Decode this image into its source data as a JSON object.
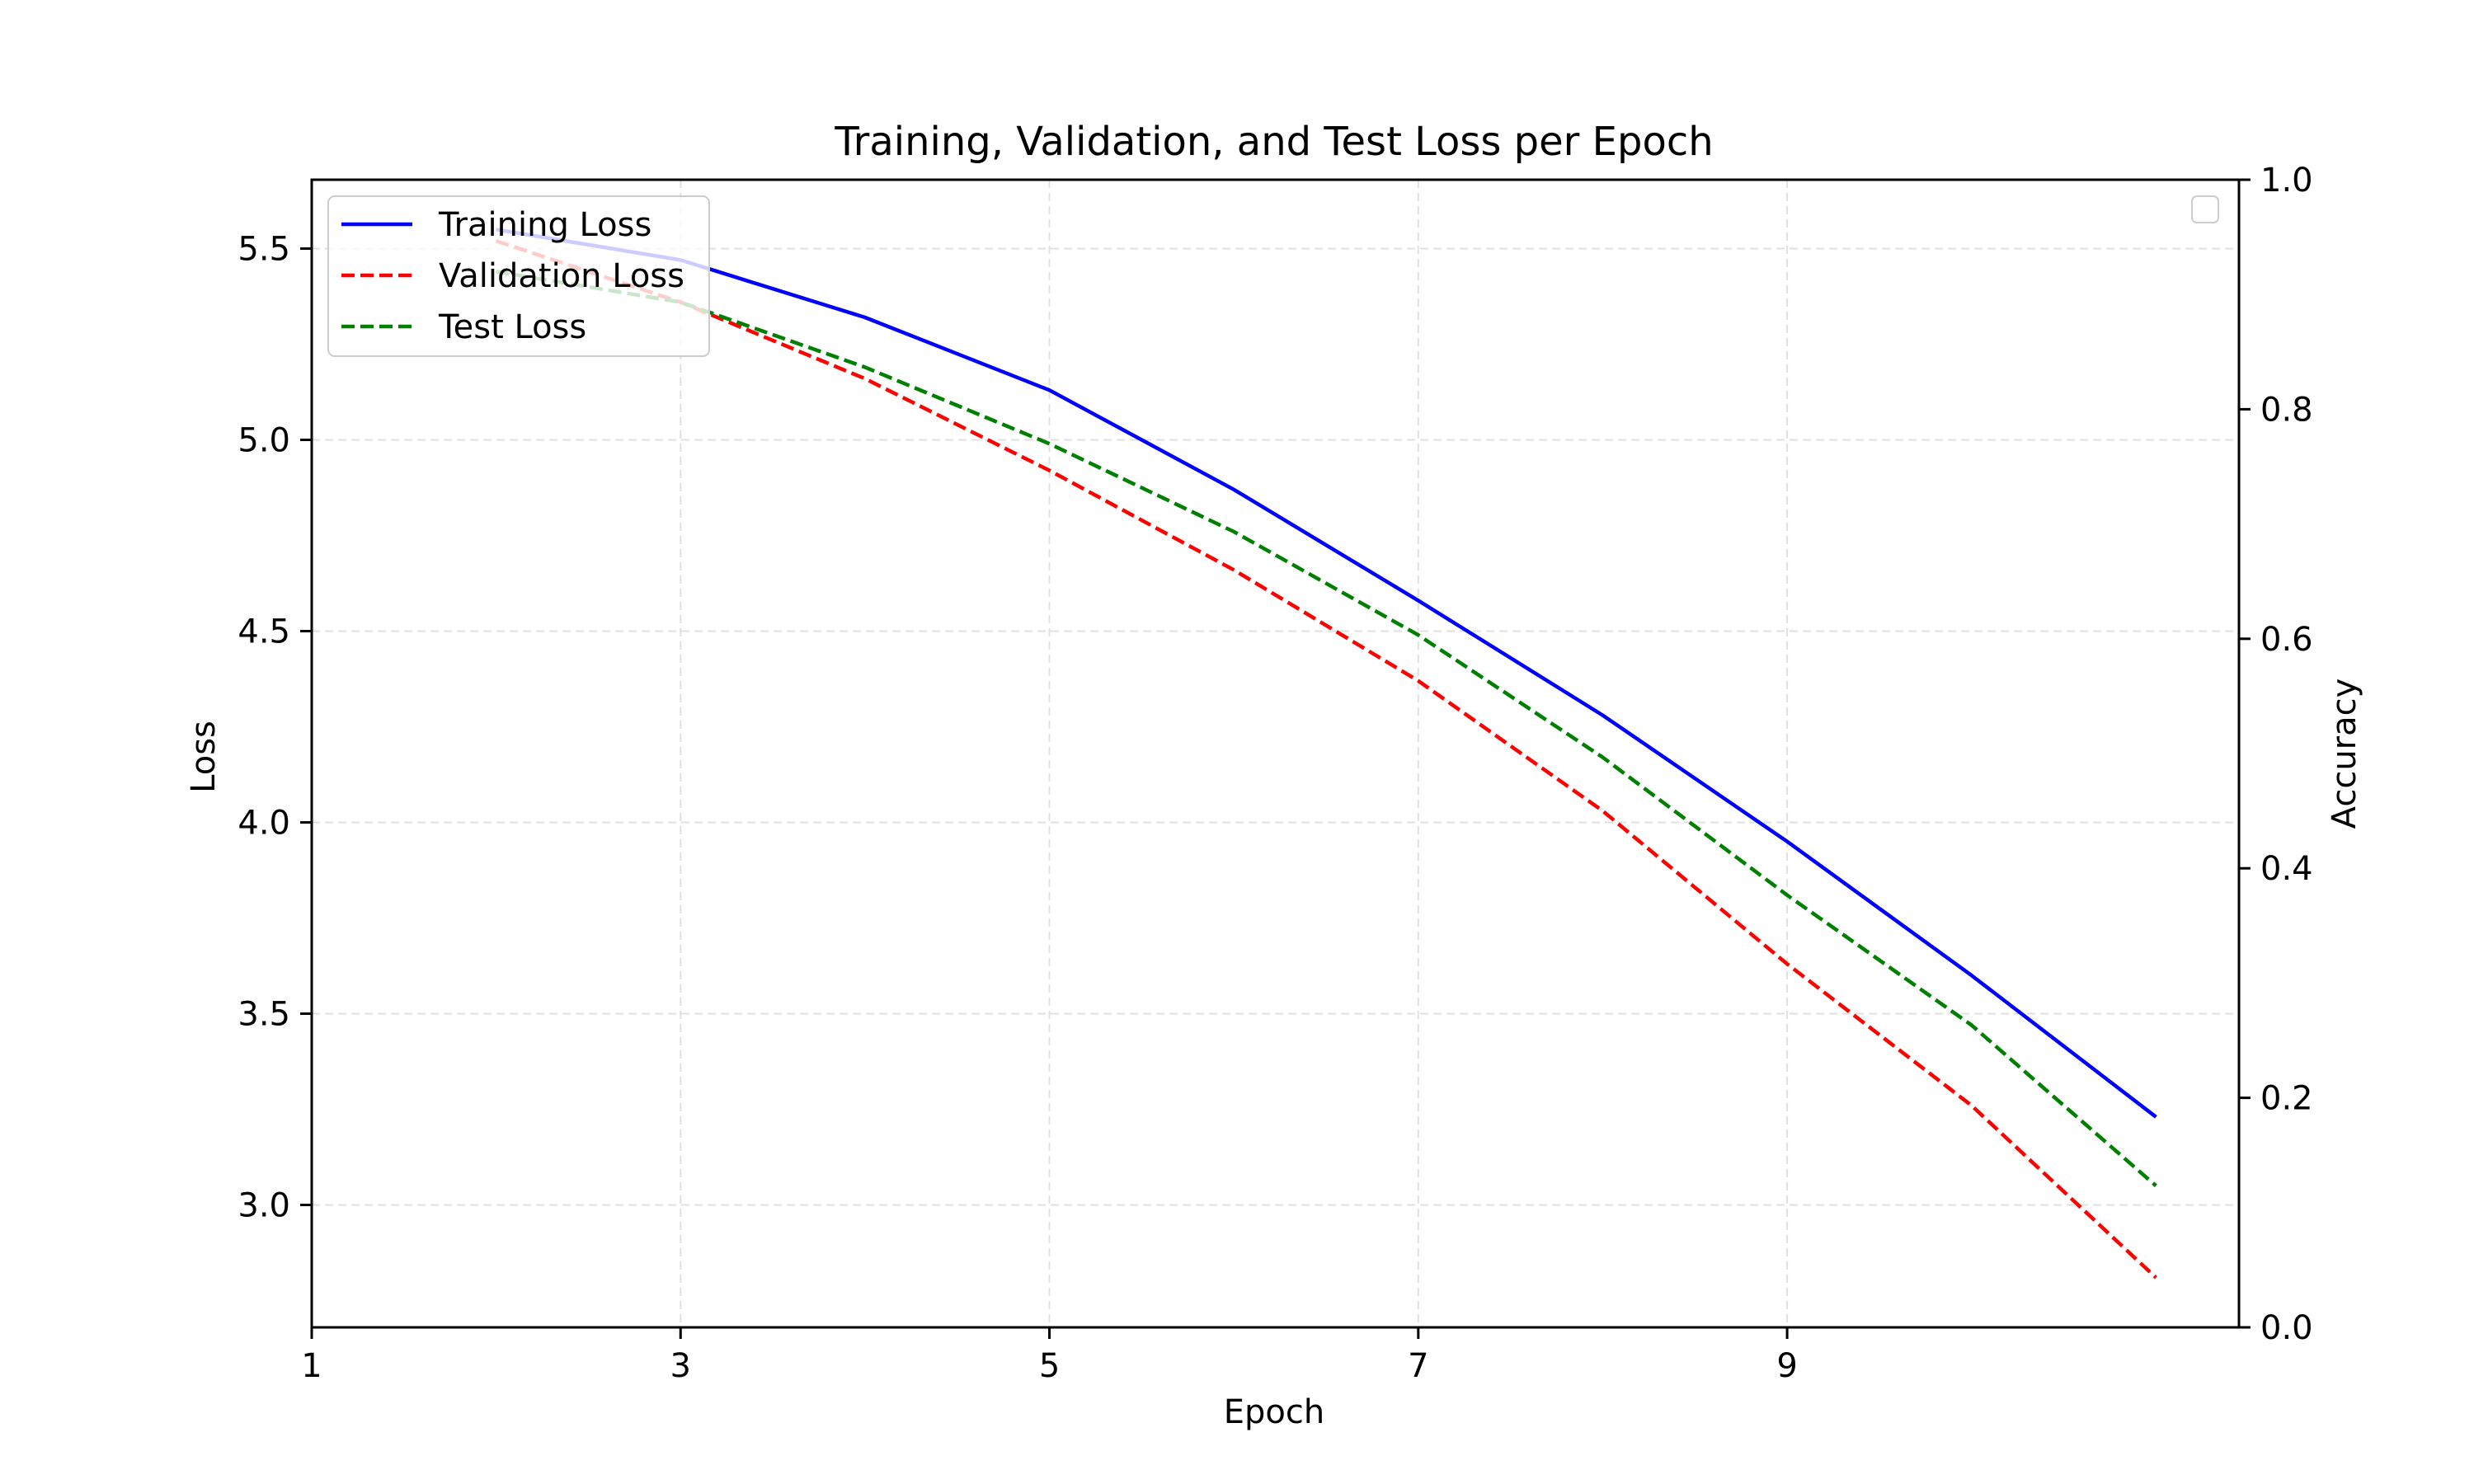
{
  "chart_data": {
    "type": "line",
    "title": "Training, Validation, and Test Loss per Epoch",
    "xlabel": "Epoch",
    "ylabel": "Loss",
    "y2label": "Accuracy",
    "xlim": [
      1,
      11.45
    ],
    "ylim": [
      2.68,
      5.68
    ],
    "y2lim": [
      0.0,
      1.0
    ],
    "x_ticks": [
      "1",
      "3",
      "5",
      "7",
      "9"
    ],
    "x_tick_values": [
      1,
      3,
      5,
      7,
      9
    ],
    "y_ticks": [
      "3.0",
      "3.5",
      "4.0",
      "4.5",
      "5.0",
      "5.5"
    ],
    "y_tick_values": [
      3.0,
      3.5,
      4.0,
      4.5,
      5.0,
      5.5
    ],
    "y2_ticks": [
      "0.0",
      "0.2",
      "0.4",
      "0.6",
      "0.8",
      "1.0"
    ],
    "y2_tick_values": [
      0.0,
      0.2,
      0.4,
      0.6,
      0.8,
      1.0
    ],
    "grid": true,
    "legend_position": "upper-left",
    "x": [
      2,
      3,
      4,
      5,
      6,
      7,
      8,
      9,
      10,
      11
    ],
    "series": [
      {
        "name": "Training Loss",
        "color": "#0000ff",
        "style": "solid",
        "values": [
          5.55,
          5.47,
          5.32,
          5.13,
          4.87,
          4.58,
          4.28,
          3.95,
          3.6,
          3.23
        ]
      },
      {
        "name": "Validation Loss",
        "color": "#ff0000",
        "style": "dashed",
        "values": [
          5.52,
          5.36,
          5.16,
          4.92,
          4.66,
          4.37,
          4.03,
          3.63,
          3.26,
          2.81
        ]
      },
      {
        "name": "Test Loss",
        "color": "#008000",
        "style": "dashed",
        "values": [
          5.44,
          5.36,
          5.19,
          4.99,
          4.76,
          4.49,
          4.17,
          3.81,
          3.47,
          3.05
        ]
      }
    ]
  }
}
